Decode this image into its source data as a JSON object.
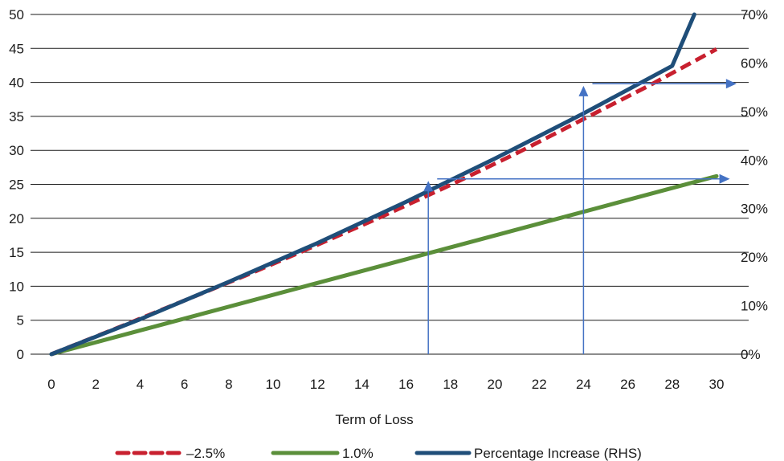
{
  "chart_data": {
    "type": "line",
    "title": "",
    "xlabel": "Term of Loss",
    "ylabel": "",
    "xlim": [
      0,
      30
    ],
    "ylim": [
      0,
      50
    ],
    "y2lim": [
      0,
      70
    ],
    "x_ticks": [
      "0",
      "2",
      "4",
      "6",
      "8",
      "10",
      "12",
      "14",
      "16",
      "18",
      "20",
      "22",
      "24",
      "26",
      "28",
      "30"
    ],
    "y_ticks": [
      "0",
      "5",
      "10",
      "15",
      "20",
      "25",
      "30",
      "35",
      "40",
      "45",
      "50"
    ],
    "y2_ticks": [
      "0%",
      "10%",
      "20%",
      "30%",
      "40%",
      "50%",
      "60%",
      "70%"
    ],
    "grid": "horizontal",
    "legend_position": "bottom",
    "series": [
      {
        "name": "–2.5%",
        "axis": "left",
        "style": "dashed",
        "color": "#c8202f",
        "x": [
          0,
          3,
          6,
          9,
          12,
          15,
          18,
          21,
          24,
          27,
          30
        ],
        "y": [
          0,
          3.9,
          7.9,
          11.9,
          16.1,
          20.4,
          24.9,
          29.6,
          34.6,
          39.6,
          44.9
        ]
      },
      {
        "name": "1.0%",
        "axis": "left",
        "style": "solid",
        "color": "#5b8f3a",
        "x": [
          0,
          30
        ],
        "y": [
          0,
          26.2
        ]
      },
      {
        "name": "Percentage Increase (RHS)",
        "axis": "right",
        "style": "solid",
        "color": "#1f4e79",
        "x": [
          0,
          4,
          8,
          12,
          16,
          20,
          24,
          28,
          29
        ],
        "y": [
          0,
          7.2,
          14.9,
          22.9,
          31.4,
          40.3,
          49.6,
          59.4,
          70
        ]
      }
    ],
    "annotations": [
      {
        "type": "arrow-up",
        "x": 17,
        "from": 0,
        "to": 25.5,
        "color": "#4472c4"
      },
      {
        "type": "arrow-right",
        "y": 25.8,
        "from_x": 17.4,
        "to_x": 30.6,
        "color": "#4472c4"
      },
      {
        "type": "arrow-up",
        "x": 24,
        "from": 0,
        "to": 39.5,
        "color": "#4472c4"
      },
      {
        "type": "arrow-right",
        "y": 39.8,
        "from_x": 24.4,
        "to_x": 30.9,
        "color": "#4472c4"
      }
    ]
  }
}
